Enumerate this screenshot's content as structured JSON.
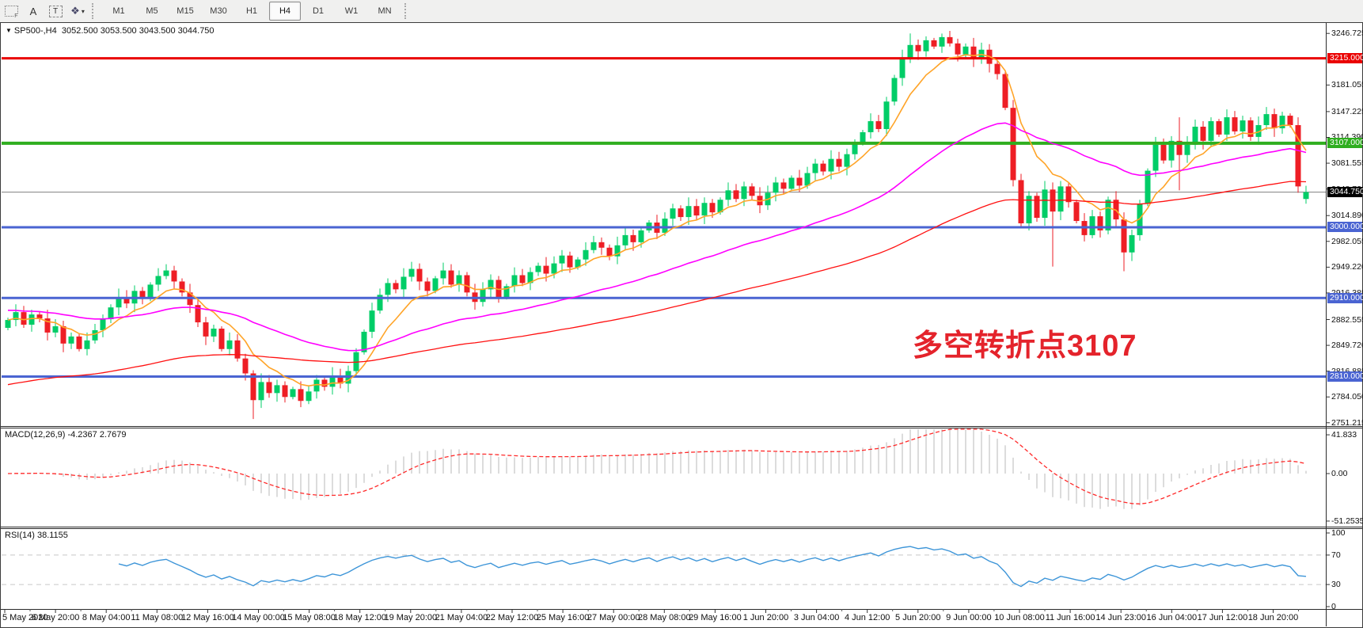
{
  "toolbar": {
    "icon_tools": [
      {
        "name": "frame-tool-icon",
        "glyph": "F"
      },
      {
        "name": "text-label-tool-icon",
        "glyph": "A"
      },
      {
        "name": "text-tool-icon",
        "glyph": "T"
      },
      {
        "name": "shapes-tool-icon",
        "glyph": "❖"
      }
    ],
    "dropdown_caret": "▾",
    "timeframes": [
      "M1",
      "M5",
      "M15",
      "M30",
      "H1",
      "H4",
      "D1",
      "W1",
      "MN"
    ],
    "active_timeframe": "H4"
  },
  "header": {
    "collapse_triangle": "▼",
    "symbol_label": "SP500-,H4",
    "ohlc_text": "3052.500 3053.500 3043.500 3044.750"
  },
  "annotation": {
    "text": "多空转折点3107",
    "color": "#e4232b"
  },
  "price_axis": {
    "ticks": [
      "3246.725",
      "3181.055",
      "3147.225",
      "3114.390",
      "3081.555",
      "3048.720",
      "3014.890",
      "2982.055",
      "2949.220",
      "2916.385",
      "2882.555",
      "2849.720",
      "2816.885",
      "2784.050",
      "2751.215"
    ],
    "badges": [
      {
        "text": "3215.000",
        "price": 3215.0,
        "bg": "#ea0000"
      },
      {
        "text": "3107.000",
        "price": 3107.0,
        "bg": "#2fae1f"
      },
      {
        "text": "3044.750",
        "price": 3044.75,
        "bg": "#000000"
      },
      {
        "text": "3000.000",
        "price": 3000.0,
        "bg": "#4a64d2"
      },
      {
        "text": "2910.000",
        "price": 2910.0,
        "bg": "#4a64d2"
      },
      {
        "text": "2810.000",
        "price": 2810.0,
        "bg": "#4a64d2"
      }
    ]
  },
  "macd_panel": {
    "label": "MACD(12,26,9) -4.2367 2.7679",
    "params": [
      12,
      26,
      9
    ],
    "main_value": -4.2367,
    "signal_value": 2.7679,
    "ticks": [
      "41.833",
      "0.00",
      "-51.2535"
    ]
  },
  "rsi_panel": {
    "label": "RSI(14) 38.1155",
    "period": 14,
    "value": 38.1155,
    "ticks": [
      "100",
      "70",
      "30",
      "0"
    ],
    "guide_levels": [
      70,
      30
    ]
  },
  "time_axis": {
    "labels": [
      "5 May 2020",
      "6 May 20:00",
      "8 May 04:00",
      "11 May 08:00",
      "12 May 16:00",
      "14 May 00:00",
      "15 May 08:00",
      "18 May 12:00",
      "19 May 20:00",
      "21 May 04:00",
      "22 May 12:00",
      "25 May 16:00",
      "27 May 00:00",
      "28 May 08:00",
      "29 May 16:00",
      "1 Jun 20:00",
      "3 Jun 04:00",
      "4 Jun 12:00",
      "5 Jun 20:00",
      "9 Jun 00:00",
      "10 Jun 08:00",
      "11 Jun 16:00",
      "14 Jun 23:00",
      "16 Jun 04:00",
      "17 Jun 12:00",
      "18 Jun 20:00"
    ]
  },
  "chart_data": {
    "type": "candlestick",
    "symbol": "SP500-",
    "timeframe": "H4",
    "last_price": 3044.75,
    "price_axis_range": {
      "top": 3257.0,
      "bottom": 2748.0
    },
    "first_open": 2872,
    "closes": [
      2882,
      2892,
      2876,
      2889,
      2884,
      2866,
      2874,
      2852,
      2861,
      2845,
      2856,
      2869,
      2883,
      2898,
      2911,
      2903,
      2919,
      2909,
      2927,
      2938,
      2945,
      2931,
      2917,
      2901,
      2879,
      2861,
      2871,
      2845,
      2856,
      2833,
      2814,
      2780,
      2803,
      2789,
      2799,
      2784,
      2794,
      2779,
      2791,
      2806,
      2797,
      2811,
      2801,
      2817,
      2841,
      2867,
      2894,
      2914,
      2929,
      2921,
      2937,
      2947,
      2931,
      2919,
      2935,
      2945,
      2927,
      2939,
      2917,
      2905,
      2921,
      2933,
      2911,
      2925,
      2939,
      2929,
      2943,
      2951,
      2941,
      2954,
      2964,
      2949,
      2959,
      2971,
      2981,
      2974,
      2963,
      2977,
      2990,
      2981,
      2996,
      3006,
      2993,
      3011,
      3024,
      3013,
      3027,
      3015,
      3031,
      3019,
      3035,
      3047,
      3036,
      3052,
      3040,
      3028,
      3044,
      3057,
      3049,
      3063,
      3053,
      3069,
      3081,
      3071,
      3087,
      3077,
      3093,
      3107,
      3121,
      3135,
      3125,
      3160,
      3190,
      3215,
      3232,
      3224,
      3238,
      3230,
      3242,
      3234,
      3220,
      3230,
      3214,
      3226,
      3208,
      3195,
      3152,
      3060,
      3005,
      3040,
      3012,
      3048,
      3020,
      3052,
      3032,
      3008,
      2990,
      3014,
      2996,
      3035,
      3010,
      2968,
      2990,
      3030,
      3072,
      3105,
      3085,
      3110,
      3092,
      3105,
      3128,
      3110,
      3135,
      3118,
      3140,
      3122,
      3136,
      3115,
      3130,
      3144,
      3126,
      3142,
      3130,
      3052,
      3044.75
    ],
    "opens_override": {
      "164": 3036
    },
    "highs_override": {
      "114": 3246.7,
      "118": 3246.5,
      "148": 3140
    },
    "lows_override": {
      "31": 2756,
      "132": 2950,
      "141": 2944,
      "148": 3047,
      "164": 3030
    },
    "levels": [
      {
        "price": 3215.0,
        "color": "#ea0000",
        "width": 3,
        "name": "resistance-3215"
      },
      {
        "price": 3107.0,
        "color": "#2fae1f",
        "width": 4,
        "name": "pivot-3107"
      },
      {
        "price": 3000.0,
        "color": "#4a64d2",
        "width": 3,
        "name": "support-3000"
      },
      {
        "price": 2910.0,
        "color": "#4a64d2",
        "width": 3,
        "name": "support-2910"
      },
      {
        "price": 2810.0,
        "color": "#4a64d2",
        "width": 3,
        "name": "support-2810"
      }
    ],
    "current_price_line": {
      "price": 3044.75,
      "color": "#808080"
    },
    "moving_averages": [
      {
        "name": "fast-ma",
        "color": "#ffa428",
        "alpha": 0.22,
        "seed": 2882
      },
      {
        "name": "medium-ma",
        "color": "#ff00ff",
        "alpha": 0.048,
        "seed": 2895
      },
      {
        "name": "slow-ma",
        "color": "#ff1010",
        "alpha": 0.02,
        "seed": 2798
      }
    ],
    "candle_colors": {
      "up": "#00cd67",
      "down": "#ee1e25"
    },
    "macd_colors": {
      "histogram": "#cccccc",
      "signal": "#ff2a2a"
    },
    "rsi_color": "#3d95d8"
  }
}
